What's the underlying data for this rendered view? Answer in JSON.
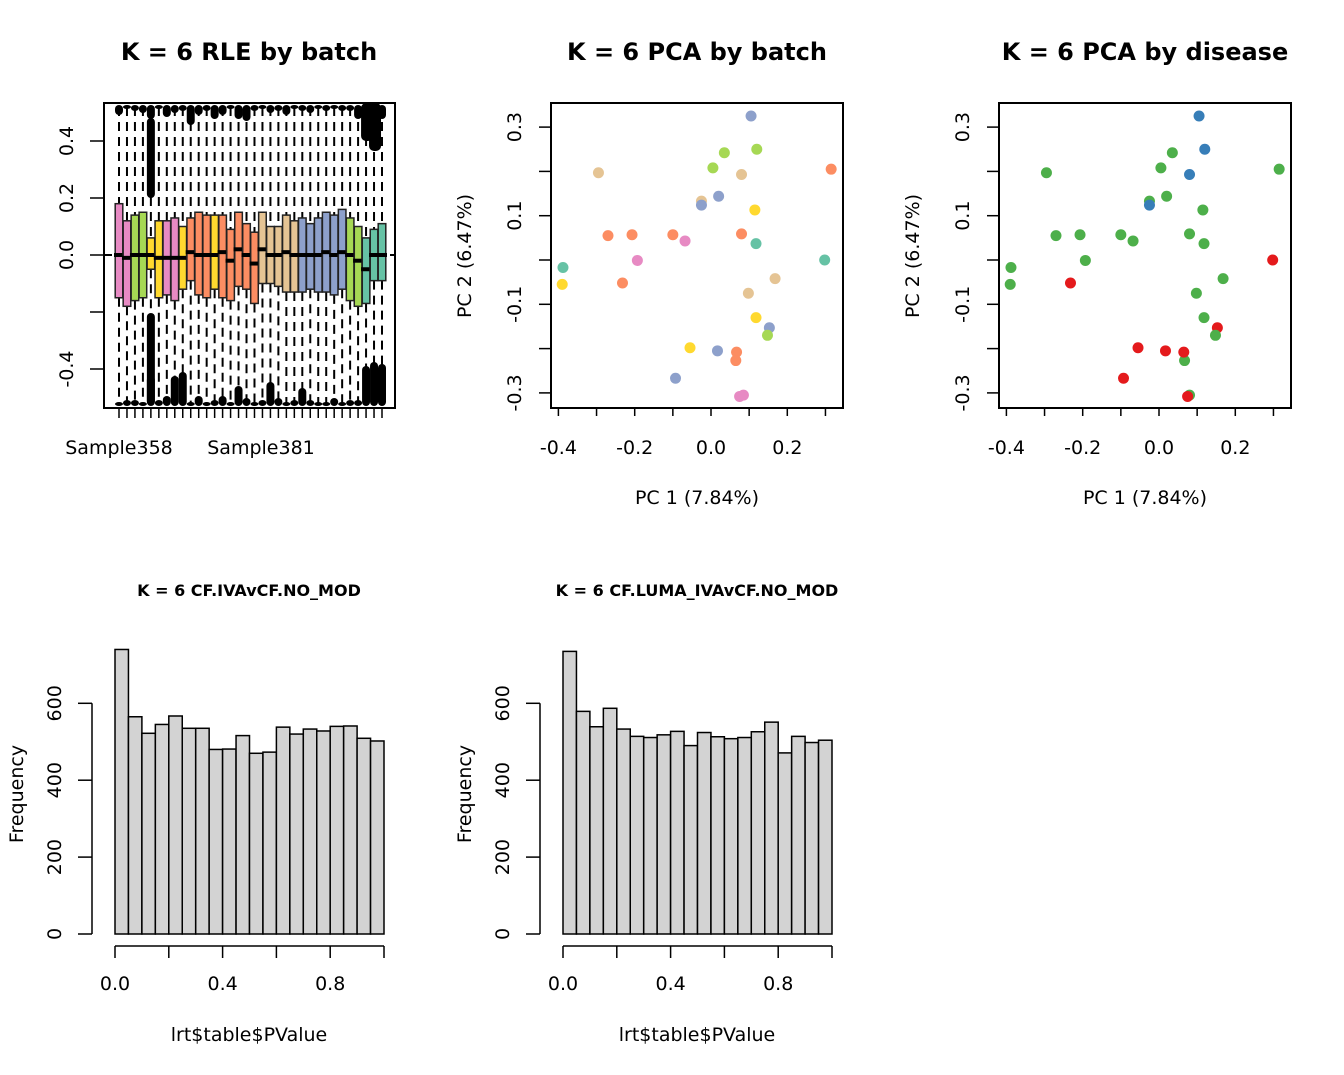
{
  "chart_data": [
    {
      "type": "boxplot",
      "title": "K = 6 RLE by batch",
      "xlabel": "",
      "ylabel": "",
      "ylim": [
        -0.54,
        0.54
      ],
      "yticks": [
        "-0.4",
        "-0.2",
        "0.0",
        "0.2",
        "0.4"
      ],
      "yticks_shown": [
        "-0.4",
        "",
        "0.0",
        "0.2",
        "0.4"
      ],
      "xtick_labels_shown": [
        "Sample358",
        "Sample381"
      ],
      "reference_line": 0.0,
      "boxes": [
        {
          "color": "#E78AC3",
          "q1": -0.15,
          "median": 0.0,
          "q3": 0.18
        },
        {
          "color": "#E78AC3",
          "q1": -0.18,
          "median": -0.01,
          "q3": 0.12
        },
        {
          "color": "#A6D854",
          "q1": -0.16,
          "median": 0.0,
          "q3": 0.14
        },
        {
          "color": "#A6D854",
          "q1": -0.15,
          "median": 0.0,
          "q3": 0.15
        },
        {
          "color": "#FFD92F",
          "q1": -0.05,
          "median": 0.0,
          "q3": 0.06
        },
        {
          "color": "#FFD92F",
          "q1": -0.15,
          "median": -0.01,
          "q3": 0.12
        },
        {
          "color": "#E78AC3",
          "q1": -0.14,
          "median": -0.01,
          "q3": 0.12
        },
        {
          "color": "#E78AC3",
          "q1": -0.16,
          "median": -0.01,
          "q3": 0.13
        },
        {
          "color": "#FFD92F",
          "q1": -0.12,
          "median": -0.01,
          "q3": 0.1
        },
        {
          "color": "#FC8D62",
          "q1": -0.09,
          "median": 0.01,
          "q3": 0.13
        },
        {
          "color": "#FC8D62",
          "q1": -0.14,
          "median": 0.0,
          "q3": 0.15
        },
        {
          "color": "#FC8D62",
          "q1": -0.15,
          "median": 0.0,
          "q3": 0.14
        },
        {
          "color": "#FFD92F",
          "q1": -0.12,
          "median": 0.0,
          "q3": 0.14
        },
        {
          "color": "#FC8D62",
          "q1": -0.15,
          "median": 0.01,
          "q3": 0.14
        },
        {
          "color": "#FC8D62",
          "q1": -0.16,
          "median": -0.02,
          "q3": 0.09
        },
        {
          "color": "#FC8D62",
          "q1": -0.11,
          "median": 0.02,
          "q3": 0.15
        },
        {
          "color": "#FC8D62",
          "q1": -0.12,
          "median": 0.0,
          "q3": 0.11
        },
        {
          "color": "#FC8D62",
          "q1": -0.17,
          "median": -0.03,
          "q3": 0.08
        },
        {
          "color": "#E5C494",
          "q1": -0.1,
          "median": 0.02,
          "q3": 0.15
        },
        {
          "color": "#E5C494",
          "q1": -0.1,
          "median": 0.0,
          "q3": 0.1
        },
        {
          "color": "#E5C494",
          "q1": -0.11,
          "median": 0.0,
          "q3": 0.1
        },
        {
          "color": "#E5C494",
          "q1": -0.13,
          "median": 0.01,
          "q3": 0.14
        },
        {
          "color": "#E5C494",
          "q1": -0.13,
          "median": 0.0,
          "q3": 0.12
        },
        {
          "color": "#8DA0CB",
          "q1": -0.13,
          "median": 0.0,
          "q3": 0.13
        },
        {
          "color": "#8DA0CB",
          "q1": -0.12,
          "median": 0.0,
          "q3": 0.11
        },
        {
          "color": "#8DA0CB",
          "q1": -0.13,
          "median": 0.0,
          "q3": 0.13
        },
        {
          "color": "#8DA0CB",
          "q1": -0.13,
          "median": 0.01,
          "q3": 0.15
        },
        {
          "color": "#8DA0CB",
          "q1": -0.14,
          "median": 0.0,
          "q3": 0.14
        },
        {
          "color": "#8DA0CB",
          "q1": -0.12,
          "median": 0.01,
          "q3": 0.16
        },
        {
          "color": "#A6D854",
          "q1": -0.16,
          "median": 0.0,
          "q3": 0.13
        },
        {
          "color": "#A6D854",
          "q1": -0.18,
          "median": -0.02,
          "q3": 0.1
        },
        {
          "color": "#66C2A5",
          "q1": -0.17,
          "median": -0.05,
          "q3": 0.06
        },
        {
          "color": "#66C2A5",
          "q1": -0.09,
          "median": 0.0,
          "q3": 0.09
        },
        {
          "color": "#66C2A5",
          "q1": -0.09,
          "median": 0.0,
          "q3": 0.11
        }
      ]
    },
    {
      "type": "scatter",
      "title": "K = 6 PCA by batch",
      "xlabel": "PC 1 (7.84%)",
      "ylabel": "PC 2 (6.47%)",
      "xlim": [
        -0.42,
        0.34
      ],
      "ylim": [
        -0.33,
        0.355
      ],
      "xticks": [
        "-0.4",
        "-0.2",
        "0.0",
        "0.2"
      ],
      "yticks": [
        "-0.3",
        "-0.1",
        "0.1",
        "0.3"
      ],
      "points": [
        {
          "x": 0.105,
          "y": 0.325,
          "color": "#8DA0CB"
        },
        {
          "x": 0.12,
          "y": 0.25,
          "color": "#A6D854"
        },
        {
          "x": 0.035,
          "y": 0.242,
          "color": "#A6D854"
        },
        {
          "x": 0.005,
          "y": 0.208,
          "color": "#A6D854"
        },
        {
          "x": -0.295,
          "y": 0.197,
          "color": "#E5C494"
        },
        {
          "x": 0.08,
          "y": 0.193,
          "color": "#E5C494"
        },
        {
          "x": 0.315,
          "y": 0.205,
          "color": "#FC8D62"
        },
        {
          "x": 0.02,
          "y": 0.144,
          "color": "#8DA0CB"
        },
        {
          "x": -0.025,
          "y": 0.133,
          "color": "#E5C494"
        },
        {
          "x": -0.025,
          "y": 0.124,
          "color": "#8DA0CB"
        },
        {
          "x": 0.115,
          "y": 0.113,
          "color": "#FFD92F"
        },
        {
          "x": -0.27,
          "y": 0.055,
          "color": "#FC8D62"
        },
        {
          "x": -0.207,
          "y": 0.057,
          "color": "#FC8D62"
        },
        {
          "x": -0.1,
          "y": 0.057,
          "color": "#FC8D62"
        },
        {
          "x": 0.08,
          "y": 0.059,
          "color": "#FC8D62"
        },
        {
          "x": -0.068,
          "y": 0.043,
          "color": "#E78AC3"
        },
        {
          "x": 0.118,
          "y": 0.037,
          "color": "#66C2A5"
        },
        {
          "x": -0.193,
          "y": -0.001,
          "color": "#E78AC3"
        },
        {
          "x": 0.298,
          "y": -0.0,
          "color": "#66C2A5"
        },
        {
          "x": -0.388,
          "y": -0.017,
          "color": "#66C2A5"
        },
        {
          "x": -0.39,
          "y": -0.055,
          "color": "#FFD92F"
        },
        {
          "x": -0.232,
          "y": -0.052,
          "color": "#FC8D62"
        },
        {
          "x": 0.168,
          "y": -0.042,
          "color": "#E5C494"
        },
        {
          "x": 0.098,
          "y": -0.075,
          "color": "#E5C494"
        },
        {
          "x": 0.118,
          "y": -0.13,
          "color": "#FFD92F"
        },
        {
          "x": 0.153,
          "y": -0.153,
          "color": "#8DA0CB"
        },
        {
          "x": 0.148,
          "y": -0.17,
          "color": "#A6D854"
        },
        {
          "x": -0.055,
          "y": -0.198,
          "color": "#FFD92F"
        },
        {
          "x": 0.017,
          "y": -0.205,
          "color": "#8DA0CB"
        },
        {
          "x": 0.067,
          "y": -0.208,
          "color": "#FC8D62"
        },
        {
          "x": 0.065,
          "y": -0.227,
          "color": "#FC8D62"
        },
        {
          "x": -0.093,
          "y": -0.267,
          "color": "#8DA0CB"
        },
        {
          "x": 0.085,
          "y": -0.305,
          "color": "#E78AC3"
        },
        {
          "x": 0.075,
          "y": -0.308,
          "color": "#E78AC3"
        }
      ]
    },
    {
      "type": "scatter",
      "title": "K = 6 PCA by disease",
      "xlabel": "PC 1 (7.84%)",
      "ylabel": "PC 2 (6.47%)",
      "xlim": [
        -0.42,
        0.34
      ],
      "ylim": [
        -0.33,
        0.355
      ],
      "xticks": [
        "-0.4",
        "-0.2",
        "0.0",
        "0.2"
      ],
      "yticks": [
        "-0.3",
        "-0.1",
        "0.1",
        "0.3"
      ],
      "points": [
        {
          "x": 0.105,
          "y": 0.325,
          "color": "#377EB8"
        },
        {
          "x": 0.12,
          "y": 0.25,
          "color": "#377EB8"
        },
        {
          "x": 0.035,
          "y": 0.242,
          "color": "#4DAF4A"
        },
        {
          "x": 0.005,
          "y": 0.208,
          "color": "#4DAF4A"
        },
        {
          "x": -0.295,
          "y": 0.197,
          "color": "#4DAF4A"
        },
        {
          "x": 0.08,
          "y": 0.193,
          "color": "#377EB8"
        },
        {
          "x": 0.315,
          "y": 0.205,
          "color": "#4DAF4A"
        },
        {
          "x": 0.02,
          "y": 0.144,
          "color": "#4DAF4A"
        },
        {
          "x": -0.025,
          "y": 0.133,
          "color": "#4DAF4A"
        },
        {
          "x": -0.025,
          "y": 0.124,
          "color": "#377EB8"
        },
        {
          "x": 0.115,
          "y": 0.113,
          "color": "#4DAF4A"
        },
        {
          "x": -0.27,
          "y": 0.055,
          "color": "#4DAF4A"
        },
        {
          "x": -0.207,
          "y": 0.057,
          "color": "#4DAF4A"
        },
        {
          "x": -0.1,
          "y": 0.057,
          "color": "#4DAF4A"
        },
        {
          "x": 0.08,
          "y": 0.059,
          "color": "#4DAF4A"
        },
        {
          "x": -0.068,
          "y": 0.043,
          "color": "#4DAF4A"
        },
        {
          "x": 0.118,
          "y": 0.037,
          "color": "#4DAF4A"
        },
        {
          "x": -0.193,
          "y": -0.001,
          "color": "#4DAF4A"
        },
        {
          "x": 0.298,
          "y": -0.0,
          "color": "#E41A1C"
        },
        {
          "x": -0.388,
          "y": -0.017,
          "color": "#4DAF4A"
        },
        {
          "x": -0.39,
          "y": -0.055,
          "color": "#4DAF4A"
        },
        {
          "x": -0.232,
          "y": -0.052,
          "color": "#E41A1C"
        },
        {
          "x": 0.168,
          "y": -0.042,
          "color": "#4DAF4A"
        },
        {
          "x": 0.098,
          "y": -0.075,
          "color": "#4DAF4A"
        },
        {
          "x": 0.118,
          "y": -0.13,
          "color": "#4DAF4A"
        },
        {
          "x": 0.153,
          "y": -0.153,
          "color": "#E41A1C"
        },
        {
          "x": 0.148,
          "y": -0.17,
          "color": "#4DAF4A"
        },
        {
          "x": -0.055,
          "y": -0.198,
          "color": "#E41A1C"
        },
        {
          "x": 0.017,
          "y": -0.205,
          "color": "#E41A1C"
        },
        {
          "x": 0.067,
          "y": -0.227,
          "color": "#4DAF4A"
        },
        {
          "x": 0.065,
          "y": -0.208,
          "color": "#E41A1C"
        },
        {
          "x": -0.093,
          "y": -0.267,
          "color": "#E41A1C"
        },
        {
          "x": 0.08,
          "y": -0.305,
          "color": "#4DAF4A"
        },
        {
          "x": 0.075,
          "y": -0.308,
          "color": "#E41A1C"
        }
      ]
    },
    {
      "type": "bar",
      "subtype": "histogram",
      "title": "K = 6 CF.IVAvCF.NO_MOD",
      "xlabel": "lrt$table$PValue",
      "ylabel": "Frequency",
      "xlim": [
        0,
        1
      ],
      "ylim": [
        0,
        740
      ],
      "xticks": [
        "0.0",
        "0.4",
        "0.8"
      ],
      "yticks": [
        "0",
        "200",
        "400",
        "600"
      ],
      "bin_width": 0.05,
      "values": [
        740,
        565,
        522,
        545,
        567,
        535,
        535,
        480,
        481,
        516,
        470,
        473,
        538,
        520,
        533,
        528,
        540,
        541,
        509,
        502
      ]
    },
    {
      "type": "bar",
      "subtype": "histogram",
      "title": "K = 6 CF.LUMA_IVAvCF.NO_MOD",
      "xlabel": "lrt$table$PValue",
      "ylabel": "Frequency",
      "xlim": [
        0,
        1
      ],
      "ylim": [
        0,
        740
      ],
      "xticks": [
        "0.0",
        "0.4",
        "0.8"
      ],
      "yticks": [
        "0",
        "200",
        "400",
        "600"
      ],
      "bin_width": 0.05,
      "values": [
        735,
        579,
        539,
        587,
        533,
        514,
        511,
        518,
        527,
        490,
        524,
        513,
        508,
        511,
        526,
        551,
        471,
        514,
        498,
        504
      ]
    }
  ]
}
